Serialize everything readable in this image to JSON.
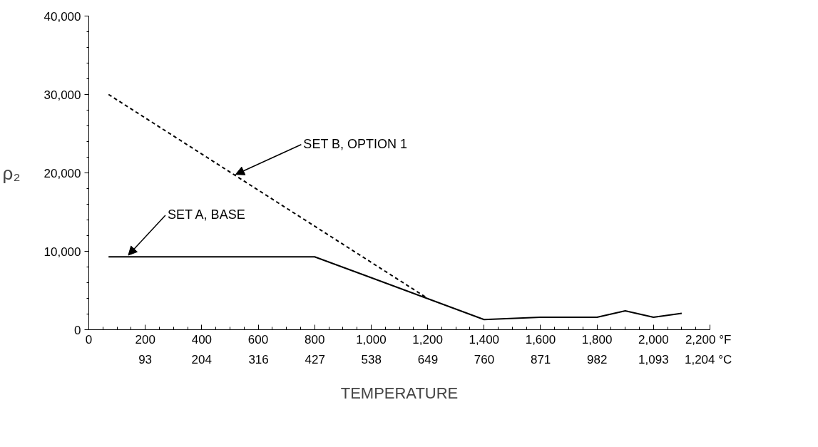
{
  "chart_data": {
    "type": "line",
    "xlabel": "TEMPERATURE",
    "ylabel": "ρ₂",
    "xlim": [
      0,
      2200
    ],
    "ylim": [
      0,
      40000
    ],
    "xticks": [
      0,
      200,
      400,
      600,
      800,
      {
        "value": 1000,
        "label": "1,000"
      },
      {
        "value": 1200,
        "label": "1,200"
      },
      {
        "value": 1400,
        "label": "1,400"
      },
      {
        "value": 1600,
        "label": "1,600"
      },
      {
        "value": 1800,
        "label": "1,800"
      },
      {
        "value": 2000,
        "label": "2,000"
      },
      {
        "value": 2200,
        "label": "2,200  °F"
      }
    ],
    "x2lim": [
      -18,
      1204
    ],
    "x2ticks": [
      93,
      204,
      316,
      427,
      538,
      649,
      760,
      871,
      982,
      {
        "value": 1093,
        "label": "1,093"
      },
      {
        "value": 1204,
        "label": "1,204  °C"
      }
    ],
    "yticks": [
      0,
      {
        "value": 10000,
        "label": "10,000"
      },
      {
        "value": 20000,
        "label": "20,000"
      },
      {
        "value": 30000,
        "label": "30,000"
      },
      {
        "value": 40000,
        "label": "40,000"
      }
    ],
    "grid": false,
    "marker": "none",
    "series": [
      {
        "color": "#000000",
        "line_style": "solid",
        "x": [
          70,
          800,
          1400,
          1600,
          1800,
          1900,
          2000,
          2100
        ],
        "values": [
          9300,
          9300,
          1300,
          1600,
          1600,
          2400,
          1600,
          2100
        ]
      },
      {
        "color": "#000000",
        "line_style": "dashed",
        "x": [
          70,
          1200
        ],
        "values": [
          30000,
          4000
        ]
      }
    ],
    "annotations": [
      {
        "text": "SET A, BASE",
        "x": 140,
        "y": 9500
      },
      {
        "text": "SET B, OPTION 1",
        "x": 520,
        "y": 19800
      }
    ]
  }
}
